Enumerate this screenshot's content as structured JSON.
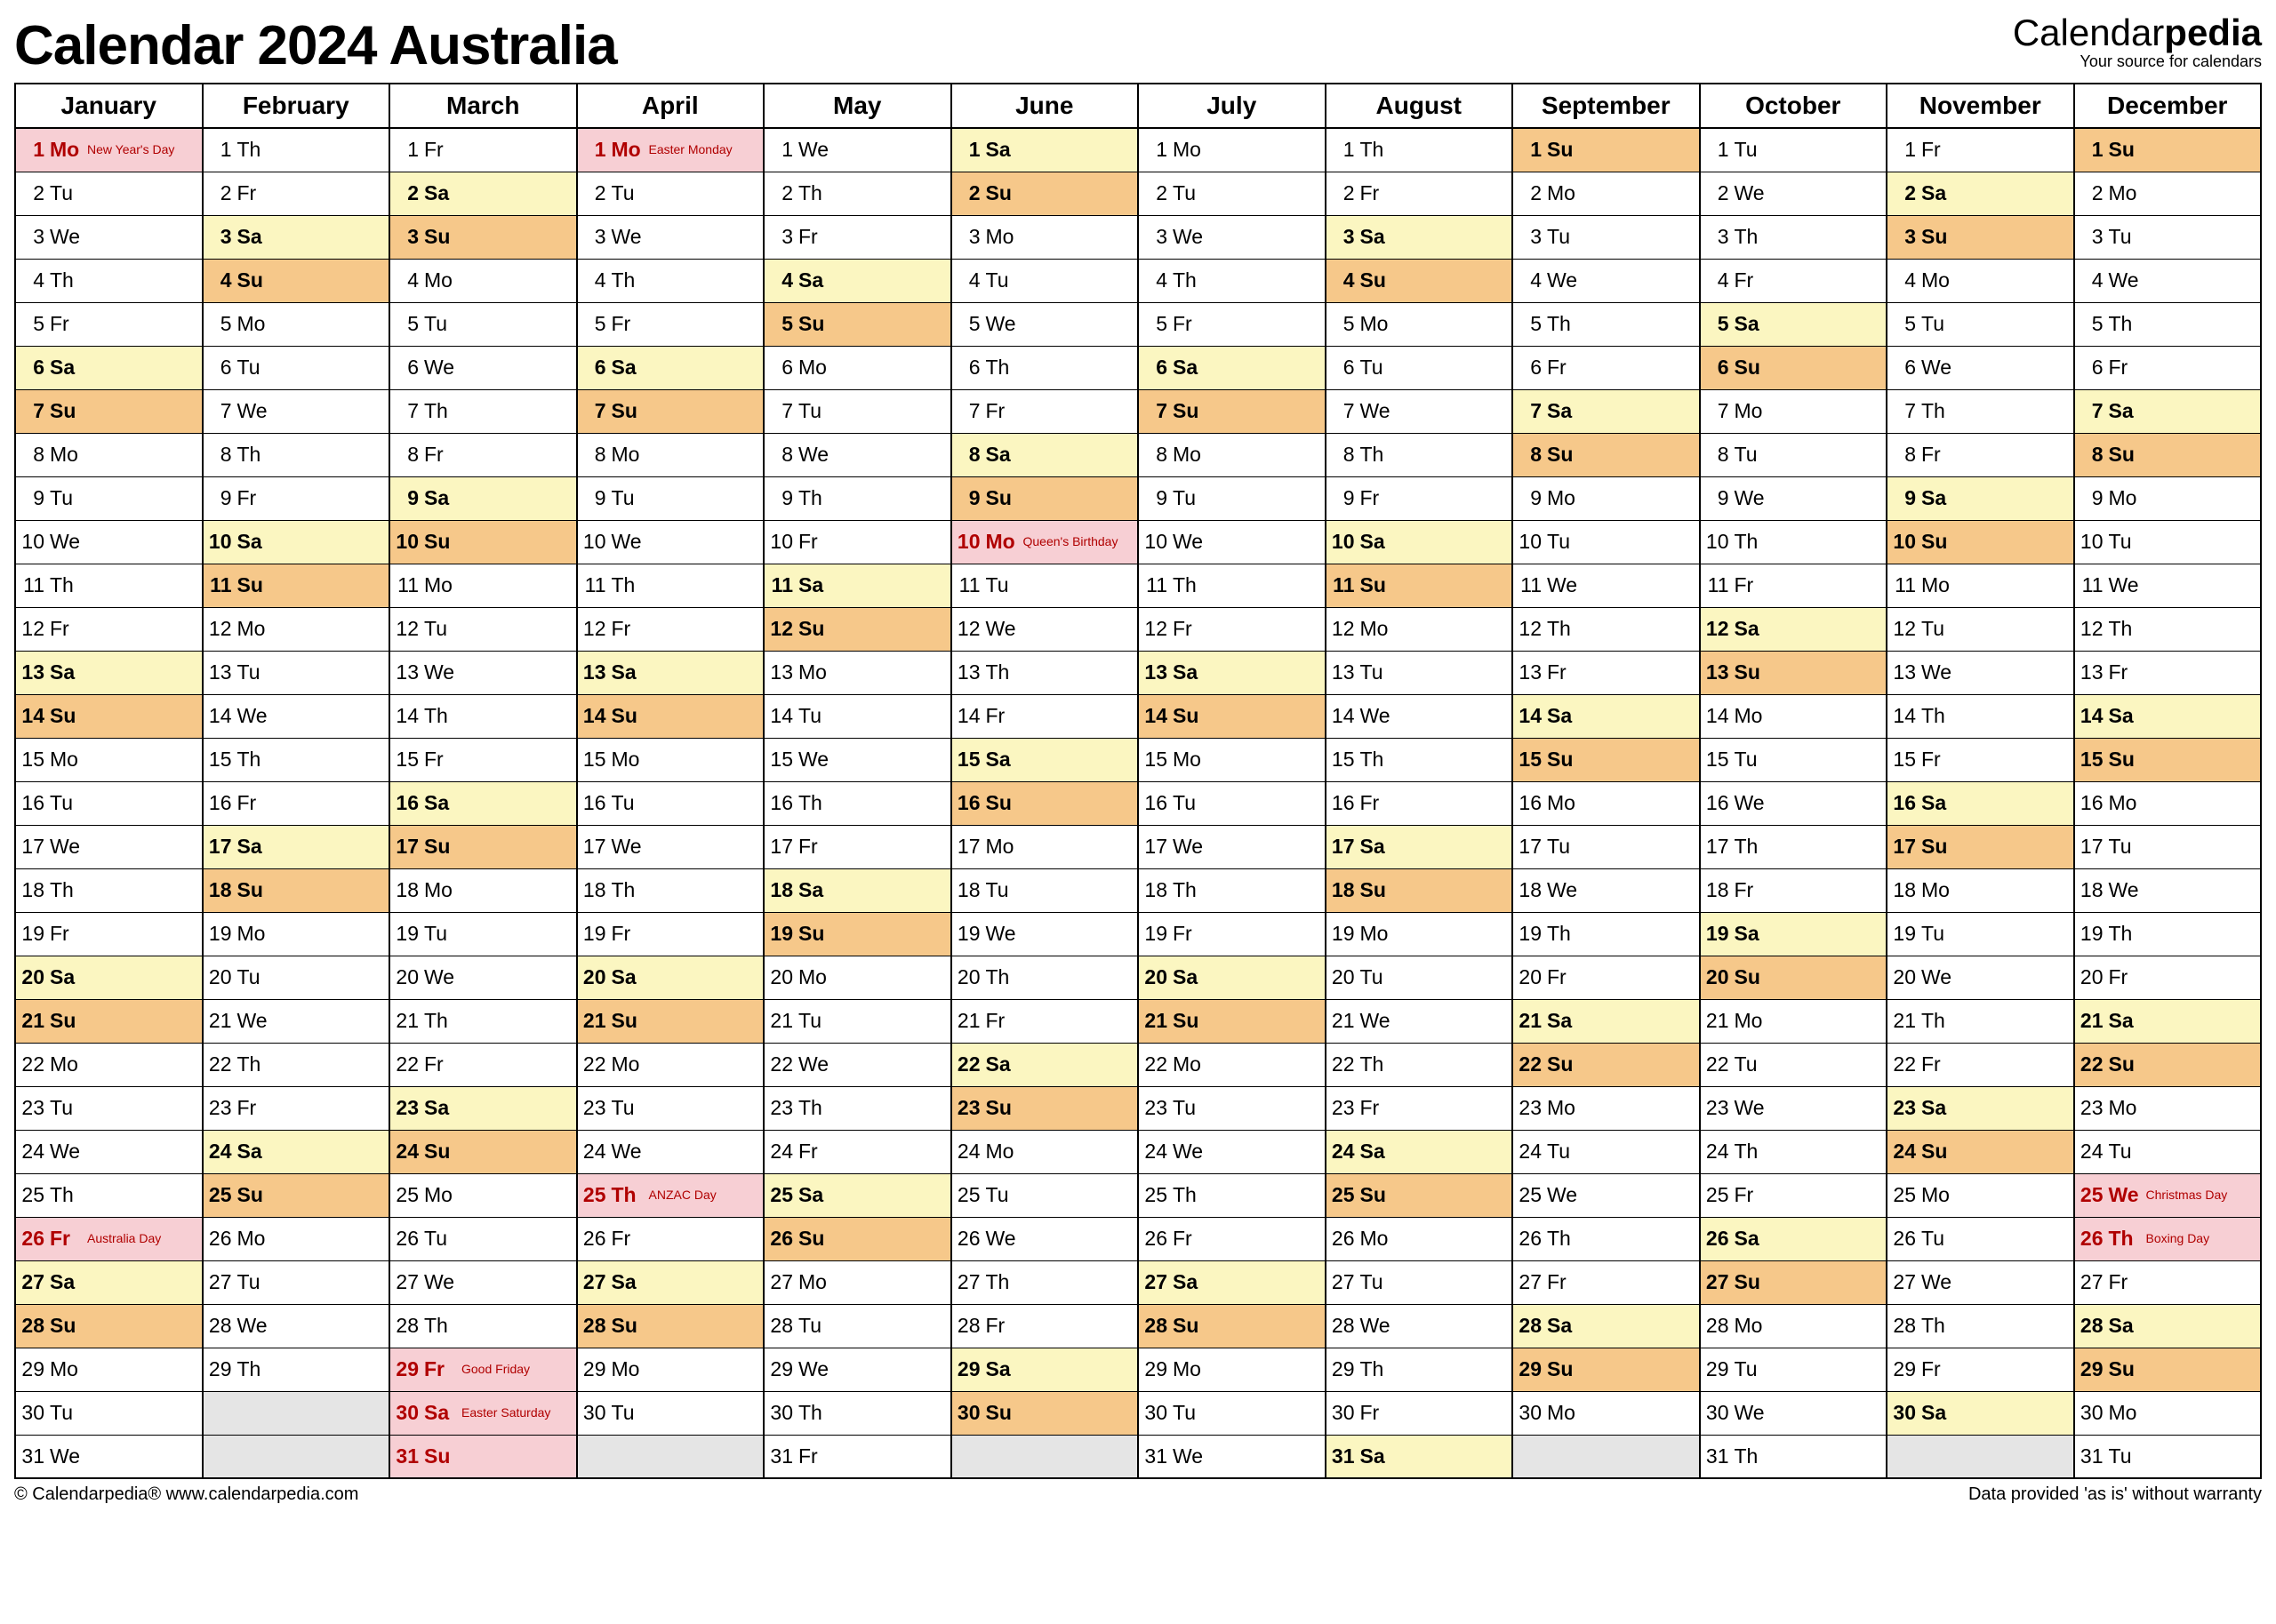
{
  "title": "Calendar 2024 Australia",
  "brand": {
    "name_a": "Calendar",
    "name_b": "pedia",
    "tagline": "Your source for calendars"
  },
  "footer": {
    "left": "© Calendarpedia®   www.calendarpedia.com",
    "right": "Data provided 'as is' without warranty"
  },
  "colors": {
    "saturday": "#fbf6c1",
    "sunday": "#f6c88a",
    "holiday": "#f7cfd4",
    "blank": "#e5e5e5",
    "holiday_text": "#b00000"
  },
  "months": [
    "January",
    "February",
    "March",
    "April",
    "May",
    "June",
    "July",
    "August",
    "September",
    "October",
    "November",
    "December"
  ],
  "days_in_month": [
    31,
    29,
    31,
    30,
    31,
    30,
    31,
    31,
    30,
    31,
    30,
    31
  ],
  "first_dow": [
    0,
    3,
    4,
    0,
    2,
    5,
    0,
    3,
    6,
    1,
    4,
    6
  ],
  "dow_labels": [
    "Mo",
    "Tu",
    "We",
    "Th",
    "Fr",
    "Sa",
    "Su"
  ],
  "holidays": {
    "0": {
      "1": "New Year's Day",
      "26": "Australia Day"
    },
    "2": {
      "29": "Good Friday",
      "30": "Easter Saturday",
      "31": ""
    },
    "3": {
      "1": "Easter Monday",
      "25": "ANZAC Day"
    },
    "5": {
      "10": "Queen's Birthday"
    },
    "11": {
      "25": "Christmas Day",
      "26": "Boxing Day"
    }
  }
}
